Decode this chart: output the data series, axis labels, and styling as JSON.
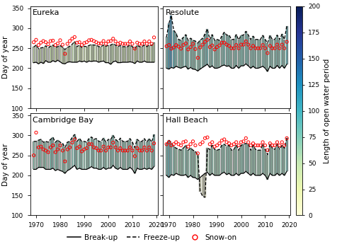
{
  "sites": [
    "Eureka",
    "Resolute",
    "Cambridge Bay",
    "Hall Beach"
  ],
  "ylim": [
    100,
    355
  ],
  "yticks": [
    100,
    150,
    200,
    250,
    300,
    350
  ],
  "ylabel": "Day of year",
  "colorbar_label": "Length of open water period",
  "colorbar_ticks": [
    0,
    25,
    50,
    75,
    100,
    125,
    150,
    175,
    200
  ],
  "cmap": "YlGnBu",
  "vmin": 0,
  "vmax": 200,
  "Eureka": {
    "years": [
      1969,
      1970,
      1971,
      1972,
      1973,
      1974,
      1975,
      1976,
      1977,
      1978,
      1979,
      1980,
      1981,
      1982,
      1983,
      1984,
      1985,
      1986,
      1987,
      1988,
      1989,
      1990,
      1991,
      1992,
      1993,
      1994,
      1995,
      1996,
      1997,
      1998,
      1999,
      2000,
      2001,
      2002,
      2003,
      2004,
      2005,
      2006,
      2007,
      2008,
      2009,
      2010,
      2011,
      2012,
      2013,
      2014,
      2015,
      2016,
      2017,
      2018,
      2019
    ],
    "breakup": [
      214,
      215,
      211,
      215,
      212,
      219,
      215,
      215,
      219,
      216,
      220,
      216,
      212,
      211,
      215,
      216,
      215,
      215,
      215,
      218,
      216,
      218,
      215,
      218,
      217,
      218,
      218,
      215,
      217,
      218,
      214,
      214,
      210,
      216,
      218,
      214,
      214,
      215,
      215,
      215,
      216,
      215,
      212,
      218,
      215,
      215,
      218,
      215,
      215,
      215,
      215
    ],
    "freezeup": [
      253,
      258,
      249,
      251,
      252,
      256,
      251,
      255,
      258,
      252,
      254,
      257,
      252,
      247,
      252,
      255,
      260,
      267,
      254,
      258,
      252,
      255,
      254,
      257,
      259,
      258,
      258,
      254,
      254,
      258,
      255,
      257,
      258,
      261,
      258,
      254,
      257,
      254,
      254,
      254,
      258,
      254,
      249,
      257,
      254,
      254,
      258,
      254,
      258,
      257,
      264
    ],
    "snowon": [
      265,
      271,
      258,
      264,
      268,
      265,
      260,
      268,
      269,
      258,
      262,
      270,
      259,
      236,
      261,
      268,
      274,
      278,
      264,
      265,
      258,
      263,
      265,
      270,
      271,
      268,
      265,
      262,
      262,
      268,
      261,
      267,
      268,
      274,
      267,
      261,
      264,
      261,
      261,
      261,
      267,
      261,
      249,
      264,
      261,
      261,
      267,
      261,
      267,
      261,
      277
    ]
  },
  "Resolute": {
    "years": [
      1969,
      1970,
      1971,
      1972,
      1973,
      1974,
      1975,
      1976,
      1977,
      1978,
      1979,
      1980,
      1981,
      1982,
      1983,
      1984,
      1985,
      1986,
      1987,
      1988,
      1989,
      1990,
      1991,
      1992,
      1993,
      1994,
      1995,
      1996,
      1997,
      1998,
      1999,
      2000,
      2001,
      2002,
      2003,
      2004,
      2005,
      2006,
      2007,
      2008,
      2009,
      2010,
      2011,
      2012,
      2013,
      2014,
      2015,
      2016,
      2017,
      2018,
      2019
    ],
    "breakup": [
      200,
      198,
      202,
      200,
      205,
      202,
      200,
      203,
      205,
      198,
      202,
      198,
      197,
      193,
      198,
      202,
      206,
      210,
      202,
      206,
      200,
      200,
      202,
      206,
      208,
      205,
      206,
      200,
      200,
      207,
      200,
      206,
      206,
      211,
      206,
      200,
      205,
      200,
      200,
      202,
      205,
      200,
      192,
      205,
      200,
      200,
      207,
      200,
      207,
      200,
      210
    ],
    "freezeup": [
      278,
      312,
      332,
      295,
      287,
      272,
      270,
      277,
      284,
      270,
      275,
      270,
      268,
      263,
      270,
      275,
      285,
      298,
      272,
      284,
      270,
      272,
      270,
      280,
      290,
      283,
      283,
      272,
      272,
      284,
      271,
      282,
      283,
      292,
      283,
      272,
      280,
      272,
      272,
      272,
      282,
      272,
      263,
      282,
      272,
      272,
      283,
      272,
      285,
      272,
      306
    ],
    "snowon": [
      255,
      258,
      249,
      252,
      258,
      254,
      249,
      258,
      262,
      247,
      253,
      261,
      248,
      226,
      252,
      259,
      266,
      271,
      253,
      257,
      247,
      253,
      257,
      264,
      264,
      259,
      256,
      250,
      250,
      258,
      250,
      259,
      259,
      267,
      259,
      250,
      256,
      250,
      250,
      250,
      258,
      250,
      238,
      256,
      250,
      250,
      259,
      250,
      259,
      250,
      266
    ]
  },
  "Cambridge Bay": {
    "years": [
      1969,
      1970,
      1971,
      1972,
      1973,
      1974,
      1975,
      1976,
      1977,
      1978,
      1979,
      1980,
      1981,
      1982,
      1983,
      1984,
      1985,
      1986,
      1987,
      1988,
      1989,
      1990,
      1991,
      1992,
      1993,
      1994,
      1995,
      1996,
      1997,
      1998,
      1999,
      2000,
      2001,
      2002,
      2003,
      2004,
      2005,
      2006,
      2007,
      2008,
      2009,
      2010,
      2011,
      2012,
      2013,
      2014,
      2015,
      2016,
      2017,
      2018,
      2019
    ],
    "breakup": [
      215,
      215,
      220,
      220,
      220,
      215,
      215,
      215,
      218,
      212,
      215,
      212,
      210,
      205,
      212,
      215,
      220,
      225,
      215,
      218,
      215,
      215,
      215,
      218,
      222,
      218,
      218,
      215,
      215,
      220,
      215,
      218,
      218,
      225,
      218,
      215,
      220,
      215,
      215,
      215,
      220,
      215,
      205,
      218,
      215,
      215,
      218,
      215,
      218,
      215,
      222
    ],
    "freezeup": [
      285,
      285,
      288,
      290,
      283,
      285,
      283,
      290,
      295,
      283,
      288,
      283,
      280,
      270,
      283,
      285,
      295,
      302,
      285,
      292,
      285,
      285,
      283,
      292,
      296,
      290,
      292,
      285,
      285,
      293,
      283,
      290,
      290,
      300,
      290,
      285,
      293,
      285,
      285,
      285,
      292,
      283,
      270,
      290,
      285,
      285,
      292,
      283,
      292,
      283,
      302
    ],
    "snowon": [
      250,
      307,
      270,
      272,
      265,
      262,
      258,
      270,
      275,
      258,
      265,
      275,
      262,
      235,
      265,
      270,
      282,
      290,
      268,
      272,
      260,
      265,
      268,
      278,
      278,
      270,
      268,
      262,
      262,
      272,
      262,
      270,
      270,
      282,
      270,
      262,
      268,
      262,
      262,
      262,
      270,
      262,
      248,
      268,
      262,
      262,
      270,
      262,
      270,
      262,
      280
    ]
  },
  "Hall Beach": {
    "years": [
      1969,
      1970,
      1971,
      1972,
      1973,
      1974,
      1975,
      1976,
      1977,
      1978,
      1979,
      1980,
      1981,
      1982,
      1983,
      1984,
      1985,
      1986,
      1987,
      1988,
      1989,
      1990,
      1991,
      1992,
      1993,
      1994,
      1995,
      1996,
      1997,
      1998,
      1999,
      2000,
      2001,
      2002,
      2003,
      2004,
      2005,
      2006,
      2007,
      2008,
      2009,
      2010,
      2011,
      2012,
      2013,
      2014,
      2015,
      2016,
      2017,
      2018,
      2019
    ],
    "breakup": [
      200,
      195,
      202,
      200,
      205,
      202,
      200,
      200,
      202,
      195,
      200,
      195,
      194,
      190,
      195,
      200,
      205,
      208,
      200,
      205,
      200,
      200,
      200,
      205,
      208,
      202,
      205,
      200,
      200,
      205,
      200,
      205,
      205,
      210,
      205,
      200,
      205,
      200,
      200,
      200,
      205,
      200,
      190,
      205,
      200,
      200,
      205,
      200,
      205,
      200,
      210
    ],
    "freezeup": [
      278,
      288,
      282,
      272,
      268,
      266,
      263,
      268,
      275,
      263,
      268,
      263,
      260,
      252,
      160,
      148,
      145,
      268,
      265,
      275,
      265,
      263,
      265,
      275,
      278,
      273,
      275,
      263,
      265,
      275,
      263,
      275,
      278,
      280,
      278,
      263,
      275,
      265,
      263,
      263,
      278,
      265,
      252,
      278,
      268,
      265,
      278,
      265,
      275,
      268,
      293
    ],
    "snowon": [
      278,
      283,
      275,
      278,
      283,
      278,
      275,
      283,
      285,
      272,
      278,
      285,
      275,
      255,
      278,
      283,
      293,
      295,
      278,
      283,
      272,
      275,
      280,
      287,
      290,
      283,
      280,
      275,
      278,
      283,
      275,
      283,
      285,
      293,
      283,
      275,
      280,
      275,
      275,
      275,
      283,
      275,
      263,
      280,
      275,
      275,
      283,
      275,
      283,
      275,
      293
    ]
  },
  "title_fontsize": 8,
  "tick_fontsize": 6.5,
  "label_fontsize": 7.5,
  "hatch_color": "#888888",
  "line_color": "black",
  "snow_color": "red"
}
